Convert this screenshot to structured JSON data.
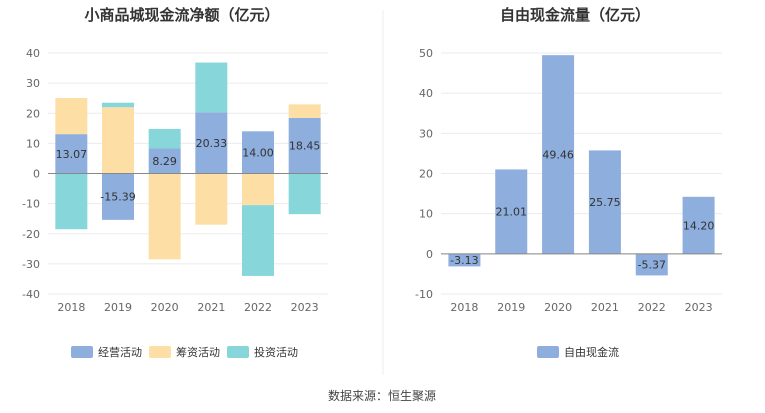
{
  "chart_data": [
    {
      "type": "bar",
      "stacked": true,
      "title": "小商品城现金流净额（亿元）",
      "categories": [
        "2018",
        "2019",
        "2020",
        "2021",
        "2022",
        "2023"
      ],
      "ylim": [
        -40,
        40
      ],
      "yticks": [
        40,
        30,
        20,
        10,
        0,
        -10,
        -20,
        -30,
        -40
      ],
      "grid": true,
      "legend_position": "bottom",
      "series": [
        {
          "name": "经营活动",
          "color": "#8eaedd",
          "values": [
            13.07,
            -15.39,
            8.29,
            20.33,
            14.0,
            18.45
          ],
          "labels": [
            "13.07",
            "-15.39",
            "8.29",
            "20.33",
            "14.00",
            "18.45"
          ]
        },
        {
          "name": "筹资活动",
          "color": "#fddfa6",
          "values": [
            12.0,
            22.0,
            -28.5,
            -17.0,
            -10.5,
            4.5
          ]
        },
        {
          "name": "投资活动",
          "color": "#87d6d9",
          "values": [
            -18.5,
            1.5,
            6.5,
            16.5,
            -23.5,
            -13.5
          ]
        }
      ]
    },
    {
      "type": "bar",
      "title": "自由现金流量（亿元）",
      "categories": [
        "2018",
        "2019",
        "2020",
        "2021",
        "2022",
        "2023"
      ],
      "ylim": [
        -10,
        50
      ],
      "yticks": [
        50,
        40,
        30,
        20,
        10,
        0,
        -10
      ],
      "grid": true,
      "legend_position": "bottom",
      "series": [
        {
          "name": "自由现金流",
          "color": "#8eaedd",
          "values": [
            -3.13,
            21.01,
            49.46,
            25.75,
            -5.37,
            14.2
          ],
          "labels": [
            "-3.13",
            "21.01",
            "49.46",
            "25.75",
            "-5.37",
            "14.20"
          ]
        }
      ]
    }
  ],
  "source_text": "数据来源：恒生聚源"
}
